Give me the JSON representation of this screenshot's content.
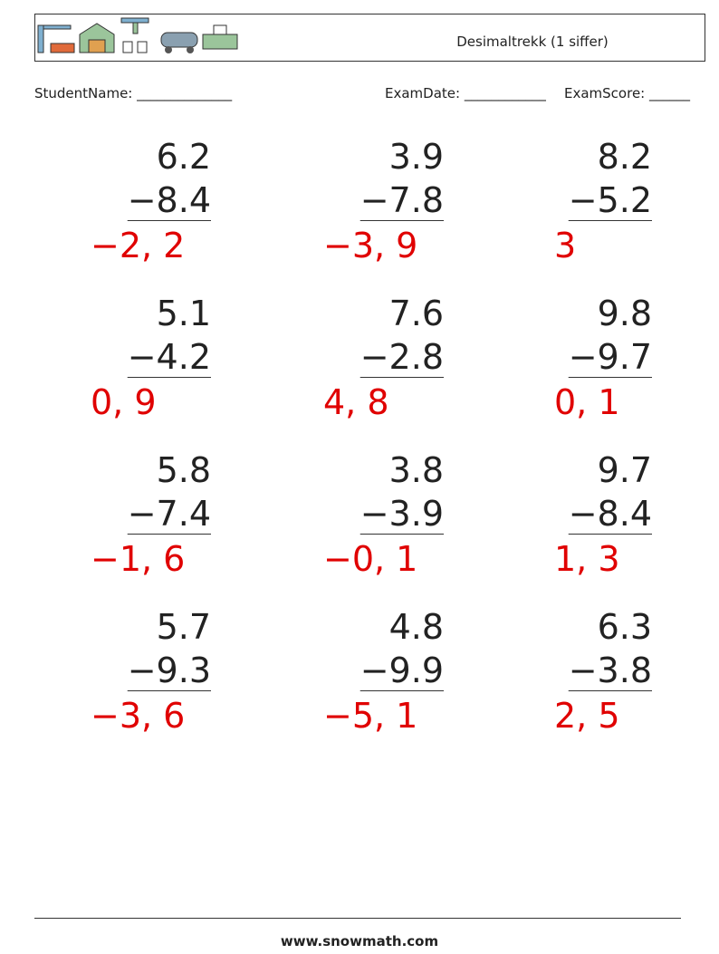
{
  "header": {
    "title": "Desimaltrekk (1 siffer)"
  },
  "fields": {
    "student_name": "StudentName: ______________",
    "exam_date": "ExamDate: ____________",
    "exam_score": "ExamScore: ______"
  },
  "problems": [
    {
      "top": "6.2",
      "bottom": "−8.4",
      "answer": "−2, 2"
    },
    {
      "top": "3.9",
      "bottom": "−7.8",
      "answer": "−3, 9"
    },
    {
      "top": "8.2",
      "bottom": "−5.2",
      "answer": "3"
    },
    {
      "top": "5.1",
      "bottom": "−4.2",
      "answer": "0, 9"
    },
    {
      "top": "7.6",
      "bottom": "−2.8",
      "answer": "4, 8"
    },
    {
      "top": "9.8",
      "bottom": "−9.7",
      "answer": "0, 1"
    },
    {
      "top": "5.8",
      "bottom": "−7.4",
      "answer": "−1, 6"
    },
    {
      "top": "3.8",
      "bottom": "−3.9",
      "answer": "−0, 1"
    },
    {
      "top": "9.7",
      "bottom": "−8.4",
      "answer": "1, 3"
    },
    {
      "top": "5.7",
      "bottom": "−9.3",
      "answer": "−3, 6"
    },
    {
      "top": "4.8",
      "bottom": "−9.9",
      "answer": "−5, 1"
    },
    {
      "top": "6.3",
      "bottom": "−3.8",
      "answer": "2, 5"
    }
  ],
  "footer": {
    "site": "www.snowmath.com"
  }
}
